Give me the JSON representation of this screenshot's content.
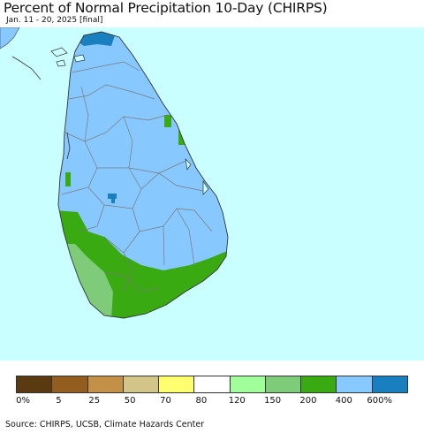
{
  "title": "Percent of Normal Precipitation 10-Day (CHIRPS)",
  "subtitle": "Jan. 11 - 20, 2025 [final]",
  "source": "Source: CHIRPS, UCSB, Climate Hazards Center",
  "colors": {
    "ocean": "#c9ffff",
    "land_main": "#86c8ff",
    "north_tip": "#1a7fbf",
    "southwest": "#7ecb7a",
    "south_band": "#3aaa12",
    "boundary": "#7a7a7a"
  },
  "legend": {
    "colors": [
      "#5a3a10",
      "#935d20",
      "#c39048",
      "#d3c48a",
      "#ffff70",
      "#ffffff",
      "#a0ff9a",
      "#7ecb7a",
      "#3aaa12",
      "#86c8ff",
      "#1a7fbf"
    ],
    "labels": [
      {
        "text": "0%",
        "index": 0
      },
      {
        "text": "5",
        "index": 1
      },
      {
        "text": "25",
        "index": 2
      },
      {
        "text": "50",
        "index": 3
      },
      {
        "text": "70",
        "index": 4
      },
      {
        "text": "80",
        "index": 5
      },
      {
        "text": "120",
        "index": 6
      },
      {
        "text": "150",
        "index": 7
      },
      {
        "text": "200",
        "index": 8
      },
      {
        "text": "400",
        "index": 9
      },
      {
        "text": "600%",
        "index": 10
      }
    ]
  }
}
